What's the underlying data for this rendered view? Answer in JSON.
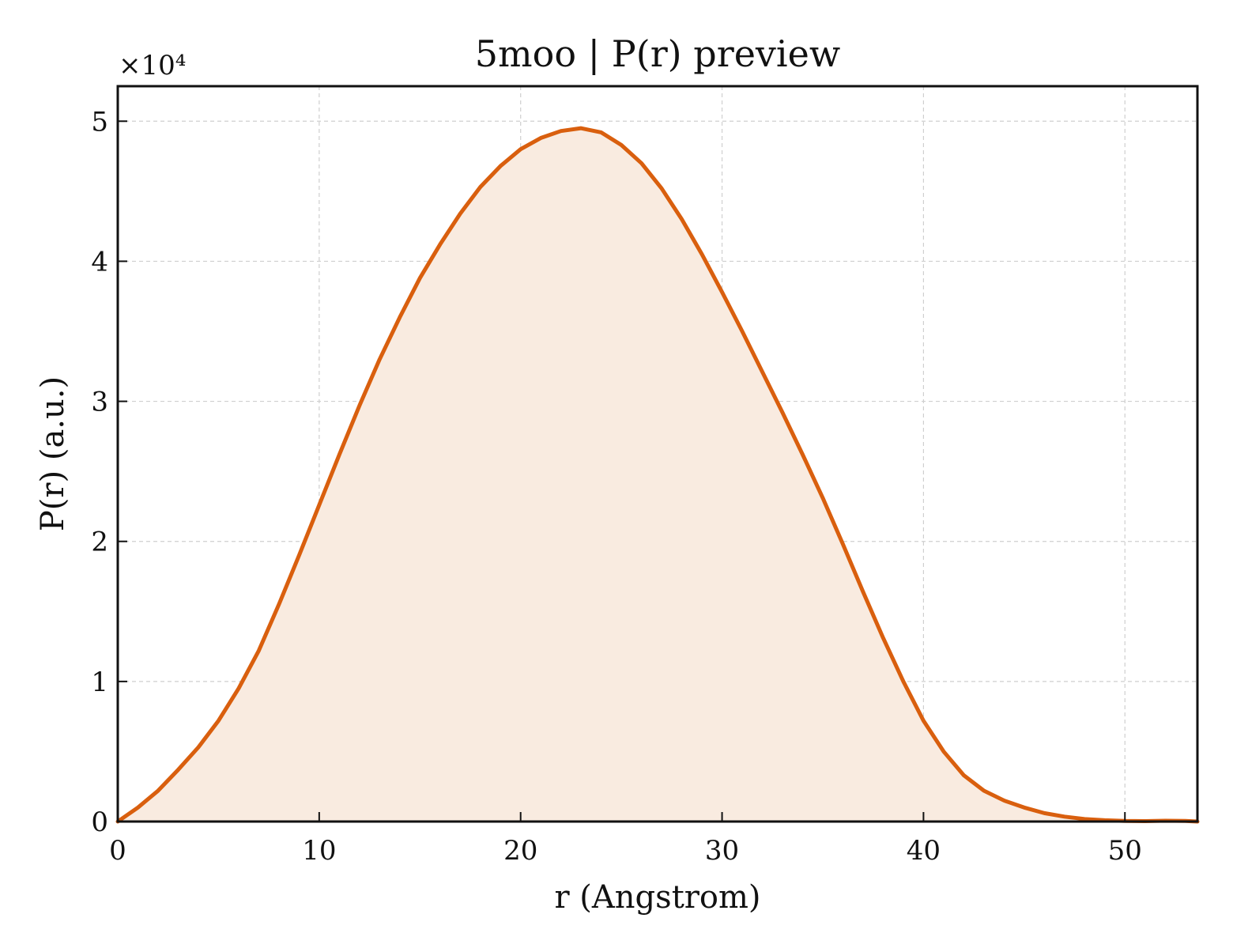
{
  "chart_data": {
    "type": "area",
    "title": "5moo | P(r) preview",
    "xlabel": "r (Angstrom)",
    "ylabel": "P(r) (a.u.)",
    "y_multiplier_label": "×10⁴",
    "xlim": [
      0,
      53.6
    ],
    "ylim": [
      0,
      5.25
    ],
    "y_scale_factor": 10000,
    "xticks": [
      0,
      10,
      20,
      30,
      40,
      50
    ],
    "yticks": [
      0,
      1,
      2,
      3,
      4,
      5
    ],
    "xtick_labels": [
      "0",
      "10",
      "20",
      "30",
      "40",
      "50"
    ],
    "ytick_labels": [
      "0",
      "1",
      "2",
      "3",
      "4",
      "5"
    ],
    "grid": true,
    "legend": "none",
    "line_color": "#d95f0e",
    "fill_color": "#f9ebe0",
    "series": [
      {
        "x": [
          0,
          1,
          2,
          3,
          4,
          5,
          6,
          7,
          8,
          9,
          10,
          11,
          12,
          13,
          14,
          15,
          16,
          17,
          18,
          19,
          20,
          21,
          22,
          23,
          24,
          25,
          26,
          27,
          28,
          29,
          30,
          31,
          32,
          33,
          34,
          35,
          36,
          37,
          38,
          39,
          40,
          41,
          42,
          43,
          44,
          45,
          46,
          47,
          48,
          49,
          50,
          51,
          52,
          53,
          53.6
        ],
        "y": [
          0,
          0.1,
          0.22,
          0.37,
          0.53,
          0.72,
          0.95,
          1.22,
          1.55,
          1.9,
          2.26,
          2.62,
          2.97,
          3.3,
          3.6,
          3.88,
          4.12,
          4.34,
          4.53,
          4.68,
          4.8,
          4.88,
          4.93,
          4.95,
          4.92,
          4.83,
          4.7,
          4.52,
          4.3,
          4.05,
          3.78,
          3.5,
          3.21,
          2.92,
          2.62,
          2.31,
          1.98,
          1.64,
          1.31,
          1.0,
          0.72,
          0.5,
          0.33,
          0.22,
          0.15,
          0.1,
          0.06,
          0.035,
          0.018,
          0.009,
          0.004,
          0.003,
          0.006,
          0.004,
          0.0
        ]
      }
    ]
  }
}
